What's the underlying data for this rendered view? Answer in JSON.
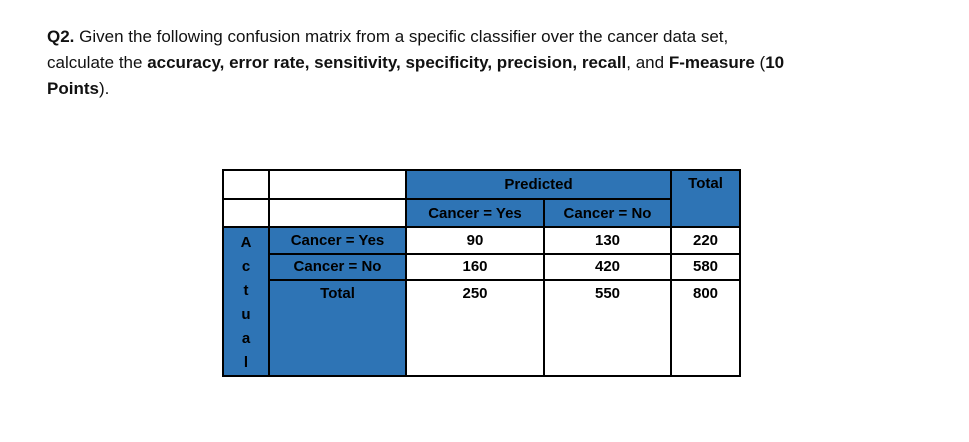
{
  "question": {
    "lines": [
      [
        {
          "text": "Q2.",
          "bold": true
        },
        {
          "text": " Given the following confusion matrix from a specific classifier over the cancer data set,",
          "bold": false
        }
      ],
      [
        {
          "text": "calculate the ",
          "bold": false
        },
        {
          "text": "accuracy, error rate, sensitivity, specificity, precision, recall",
          "bold": true
        },
        {
          "text": ", and ",
          "bold": false
        },
        {
          "text": "F-measure",
          "bold": true
        },
        {
          "text": " (",
          "bold": false
        },
        {
          "text": "10",
          "bold": true
        }
      ],
      [
        {
          "text": "Points",
          "bold": true
        },
        {
          "text": ").",
          "bold": false
        }
      ]
    ]
  },
  "table": {
    "headers": {
      "predicted": "Predicted",
      "total": "Total",
      "pred_yes": "Cancer = Yes",
      "pred_no": "Cancer = No"
    },
    "axis": {
      "word": "Actual",
      "letters": [
        "A",
        "c",
        "t",
        "u",
        "a",
        "l"
      ]
    },
    "rows": [
      {
        "label": "Cancer = Yes",
        "values": [
          "90",
          "130",
          "220"
        ]
      },
      {
        "label": "Cancer = No",
        "values": [
          "160",
          "420",
          "580"
        ]
      },
      {
        "label": "Total",
        "values": [
          "250",
          "550",
          "800"
        ]
      }
    ],
    "colors": {
      "header_blue": "#2E74B5",
      "border": "#000000",
      "cell_bg": "#FFFFFF",
      "text": "#000000"
    }
  }
}
